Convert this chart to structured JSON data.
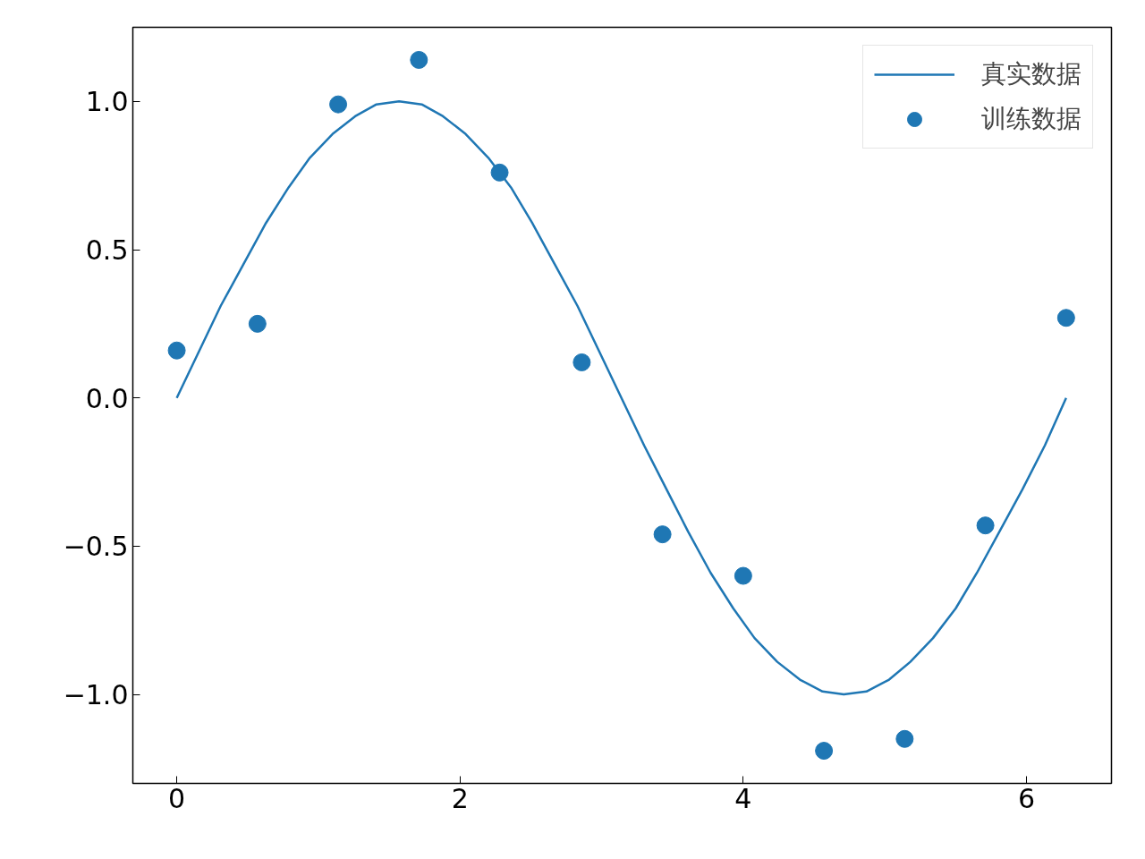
{
  "chart_data": {
    "type": "line",
    "xlim": [
      -0.31,
      6.6
    ],
    "ylim": [
      -1.3,
      1.25
    ],
    "xticks": [
      0,
      2,
      4,
      6
    ],
    "yticks": [
      {
        "value": -1.0,
        "label": "−1.0"
      },
      {
        "value": -0.5,
        "label": "−0.5"
      },
      {
        "value": 0,
        "label": "0.0"
      },
      {
        "value": 0.5,
        "label": "0.5"
      },
      {
        "value": 1.0,
        "label": "1.0"
      }
    ],
    "grid": false,
    "legend": "top right",
    "series": [
      {
        "name": "真实数据",
        "color": "#1f77b4",
        "line_style": "solid",
        "x": [
          0,
          0.16,
          0.31,
          0.47,
          0.63,
          0.79,
          0.94,
          1.1,
          1.26,
          1.41,
          1.57,
          1.73,
          1.88,
          2.04,
          2.2,
          2.36,
          2.51,
          2.67,
          2.83,
          2.98,
          3.14,
          3.3,
          3.46,
          3.61,
          3.77,
          3.93,
          4.08,
          4.24,
          4.4,
          4.56,
          4.71,
          4.87,
          5.03,
          5.18,
          5.34,
          5.5,
          5.65,
          5.81,
          5.97,
          6.13,
          6.28
        ],
        "values": [
          0,
          0.16,
          0.31,
          0.45,
          0.59,
          0.71,
          0.81,
          0.89,
          0.95,
          0.99,
          1,
          0.99,
          0.95,
          0.89,
          0.81,
          0.71,
          0.59,
          0.45,
          0.31,
          0.16,
          0,
          -0.16,
          -0.31,
          -0.45,
          -0.59,
          -0.71,
          -0.81,
          -0.89,
          -0.95,
          -0.99,
          -1,
          -0.99,
          -0.95,
          -0.89,
          -0.81,
          -0.71,
          -0.59,
          -0.45,
          -0.31,
          -0.16,
          0
        ]
      },
      {
        "name": "训练数据",
        "type": "scatter",
        "color": "#1f77b4",
        "marker": "circle",
        "x": [
          0,
          0.57,
          1.14,
          1.71,
          2.28,
          2.86,
          3.43,
          4.0,
          4.57,
          5.14,
          5.71,
          6.28
        ],
        "values": [
          0.16,
          0.25,
          0.99,
          1.14,
          0.76,
          0.12,
          -0.46,
          -0.6,
          -1.19,
          -1.15,
          -0.43,
          0.27
        ]
      }
    ]
  }
}
